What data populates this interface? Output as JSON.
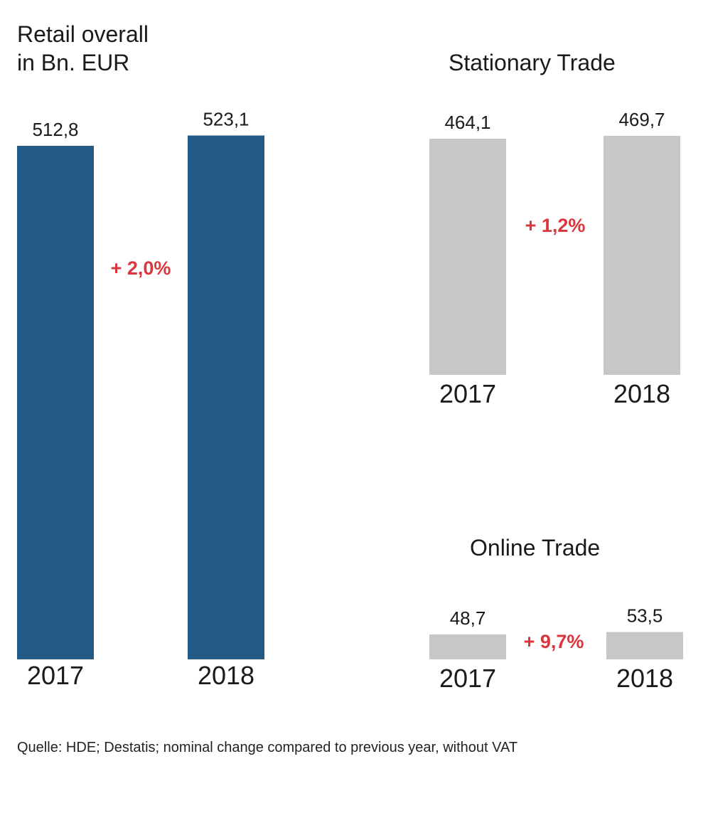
{
  "colors": {
    "primary_bar": "#225985",
    "secondary_bar": "#c7c7c7",
    "change_text": "#d9363e",
    "text": "#1a1a1a"
  },
  "source": "Quelle: HDE; Destatis; nominal change compared to previous year, without VAT",
  "chart_data": [
    {
      "type": "bar",
      "title": "Retail overall",
      "subtitle": "in Bn. EUR",
      "categories": [
        "2017",
        "2018"
      ],
      "values": [
        512.8,
        523.1
      ],
      "value_labels": [
        "512,8",
        "523,1"
      ],
      "change_label": "+ 2,0%",
      "color": "#225985"
    },
    {
      "type": "bar",
      "title": "Stationary Trade",
      "categories": [
        "2017",
        "2018"
      ],
      "values": [
        464.1,
        469.7
      ],
      "value_labels": [
        "464,1",
        "469,7"
      ],
      "change_label": "+ 1,2%",
      "color": "#c7c7c7"
    },
    {
      "type": "bar",
      "title": "Online Trade",
      "categories": [
        "2017",
        "2018"
      ],
      "values": [
        48.7,
        53.5
      ],
      "value_labels": [
        "48,7",
        "53,5"
      ],
      "change_label": "+ 9,7%",
      "color": "#c7c7c7"
    }
  ]
}
